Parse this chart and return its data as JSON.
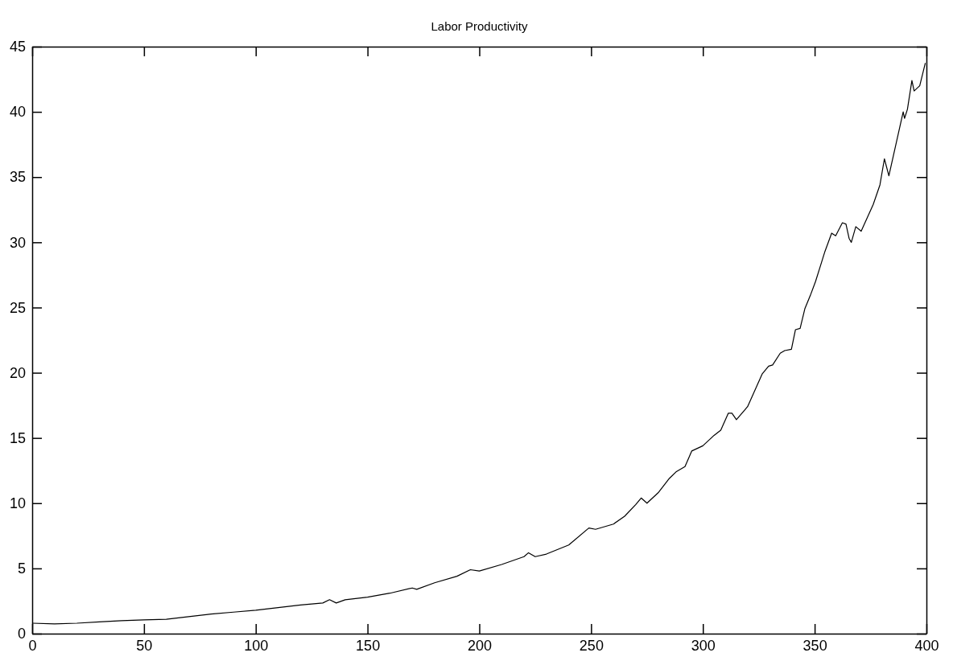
{
  "chart_data": {
    "type": "line",
    "title": "Labor Productivity",
    "x": [
      0,
      10,
      20,
      30,
      40,
      50,
      60,
      70,
      80,
      90,
      100,
      110,
      120,
      130,
      133,
      136,
      140,
      150,
      160,
      170,
      172,
      180,
      190,
      196,
      200,
      210,
      220,
      222,
      225,
      230,
      240,
      249,
      252,
      260,
      265,
      270,
      272.4,
      275,
      280,
      285,
      288,
      292,
      295,
      300,
      305,
      308,
      311.4,
      313,
      315,
      320,
      326.5,
      329.4,
      331.2,
      334.6,
      336.6,
      339.6,
      341.4,
      343.5,
      345.6,
      348,
      350.4,
      354.6,
      357.6,
      359.4,
      362.4,
      364,
      365.4,
      366.4,
      368.4,
      370.8,
      376.2,
      379.2,
      381.2,
      383.2,
      389.6,
      390.2,
      391.5,
      393.5,
      394.5,
      397,
      399.5
    ],
    "series": [
      {
        "color": "#000000",
        "values": [
          0.8,
          0.75,
          0.8,
          0.9,
          1.0,
          1.05,
          1.1,
          1.3,
          1.5,
          1.65,
          1.8,
          2.0,
          2.2,
          2.35,
          2.6,
          2.35,
          2.6,
          2.8,
          3.1,
          3.5,
          3.4,
          3.9,
          4.4,
          4.9,
          4.8,
          5.3,
          5.9,
          6.2,
          5.9,
          6.1,
          6.8,
          8.1,
          8.0,
          8.4,
          9.0,
          9.9,
          10.4,
          10.0,
          10.8,
          11.9,
          12.4,
          12.8,
          14.0,
          14.4,
          15.2,
          15.6,
          16.9,
          16.9,
          16.4,
          17.4,
          19.9,
          20.5,
          20.6,
          21.5,
          21.7,
          21.8,
          23.3,
          23.4,
          24.9,
          25.9,
          27.0,
          29.3,
          30.7,
          30.5,
          31.5,
          31.4,
          30.3,
          30.0,
          31.2,
          30.85,
          32.9,
          34.4,
          36.4,
          35.1,
          40.0,
          39.5,
          40.2,
          42.4,
          41.6,
          42.0,
          43.75
        ]
      }
    ],
    "xlim": [
      0,
      400
    ],
    "xticks": [
      0,
      50,
      100,
      150,
      200,
      250,
      300,
      350,
      400
    ],
    "ylim": [
      0,
      45
    ],
    "yticks": [
      0,
      5,
      10,
      15,
      20,
      25,
      30,
      35,
      40,
      45
    ],
    "grid": false,
    "marker": "none",
    "line_style": "solid"
  }
}
